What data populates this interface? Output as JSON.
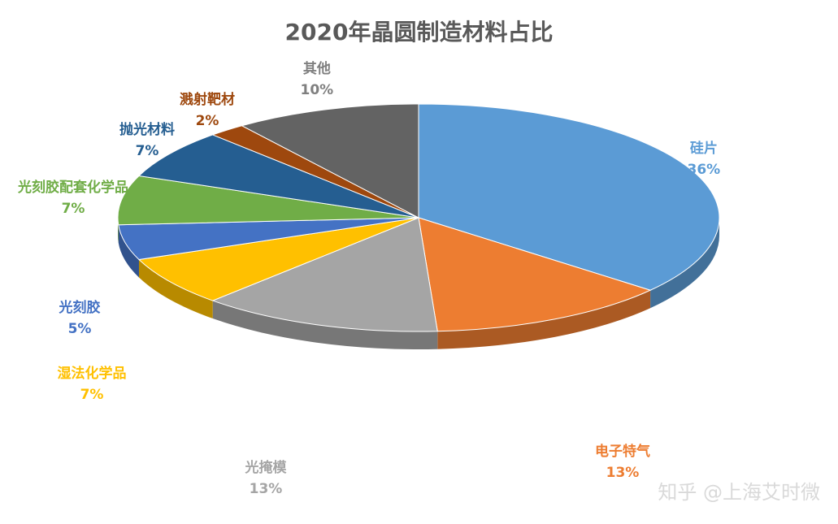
{
  "chart_data": {
    "type": "pie",
    "title": "2020年晶圆制造材料占比",
    "slices": [
      {
        "name": "硅片",
        "value": 36,
        "label": "36%",
        "color": "#5B9BD5"
      },
      {
        "name": "电子特气",
        "value": 13,
        "label": "13%",
        "color": "#ED7D31"
      },
      {
        "name": "光掩模",
        "value": 13,
        "label": "13%",
        "color": "#A5A5A5"
      },
      {
        "name": "湿法化学品",
        "value": 7,
        "label": "7%",
        "color": "#FFC000"
      },
      {
        "name": "光刻胶",
        "value": 5,
        "label": "5%",
        "color": "#4472C4"
      },
      {
        "name": "光刻胶配套化学品",
        "value": 7,
        "label": "7%",
        "color": "#70AD47"
      },
      {
        "name": "抛光材料",
        "value": 7,
        "label": "7%",
        "color": "#255E91"
      },
      {
        "name": "溅射靶材",
        "value": 2,
        "label": "2%",
        "color": "#9E480E"
      },
      {
        "name": "其他",
        "value": 10,
        "label": "10%",
        "color": "#636363"
      }
    ]
  },
  "watermark": "知乎 @上海艾时微"
}
